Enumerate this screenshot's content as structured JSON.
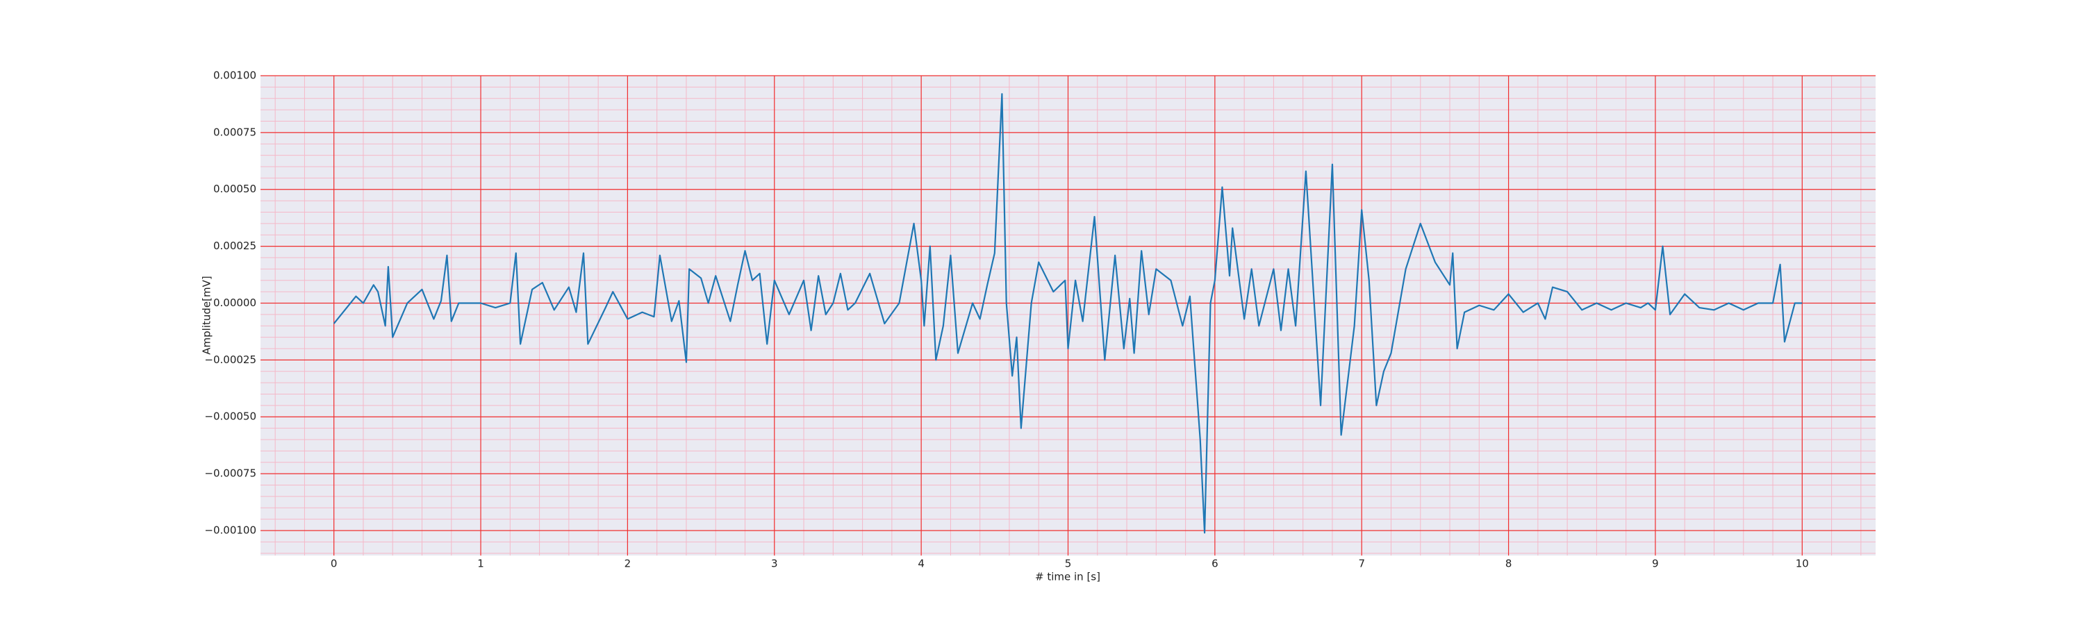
{
  "chart_data": {
    "type": "line",
    "xlabel": "# time in [s]",
    "ylabel": "Amplitude[mV]",
    "xlim": [
      -0.5,
      10.5
    ],
    "ylim": [
      -0.00111,
      0.001
    ],
    "xticks": [
      0,
      1,
      2,
      3,
      4,
      5,
      6,
      7,
      8,
      9,
      10
    ],
    "yticks": [
      {
        "value": -0.001,
        "label": "−0.00100"
      },
      {
        "value": -0.00075,
        "label": "−0.00075"
      },
      {
        "value": -0.0005,
        "label": "−0.00050"
      },
      {
        "value": -0.00025,
        "label": "−0.00025"
      },
      {
        "value": 0,
        "label": "0.00000"
      },
      {
        "value": 0.00025,
        "label": "0.00025"
      },
      {
        "value": 0.0005,
        "label": "0.00050"
      },
      {
        "value": 0.00075,
        "label": "0.00075"
      },
      {
        "value": 0.001,
        "label": "0.00100"
      }
    ],
    "grid": true,
    "grid_color": "#f03030",
    "minor_grid": {
      "x_divisions": 5,
      "y_divisions": 5,
      "color": "#f5b8c8"
    },
    "background": "#eaeaf2",
    "x": [
      0,
      0.15,
      0.2,
      0.27,
      0.3,
      0.35,
      0.37,
      0.4,
      0.5,
      0.6,
      0.68,
      0.73,
      0.77,
      0.8,
      0.85,
      1.0,
      1.1,
      1.2,
      1.24,
      1.27,
      1.35,
      1.42,
      1.5,
      1.6,
      1.65,
      1.7,
      1.73,
      1.85,
      1.9,
      2.0,
      2.1,
      2.18,
      2.22,
      2.3,
      2.35,
      2.4,
      2.42,
      2.5,
      2.55,
      2.6,
      2.7,
      2.75,
      2.8,
      2.85,
      2.9,
      2.95,
      3.0,
      3.1,
      3.2,
      3.25,
      3.3,
      3.35,
      3.4,
      3.45,
      3.5,
      3.55,
      3.65,
      3.7,
      3.75,
      3.85,
      3.95,
      4.0,
      4.02,
      4.06,
      4.1,
      4.15,
      4.2,
      4.25,
      4.35,
      4.4,
      4.45,
      4.5,
      4.55,
      4.58,
      4.62,
      4.65,
      4.68,
      4.75,
      4.8,
      4.9,
      4.98,
      5.0,
      5.05,
      5.1,
      5.18,
      5.25,
      5.32,
      5.38,
      5.42,
      5.45,
      5.5,
      5.55,
      5.6,
      5.7,
      5.78,
      5.83,
      5.9,
      5.93,
      5.97,
      6.0,
      6.05,
      6.1,
      6.12,
      6.2,
      6.25,
      6.3,
      6.4,
      6.45,
      6.5,
      6.55,
      6.62,
      6.65,
      6.72,
      6.8,
      6.86,
      6.95,
      7.0,
      7.05,
      7.1,
      7.15,
      7.2,
      7.3,
      7.4,
      7.5,
      7.6,
      7.62,
      7.65,
      7.7,
      7.8,
      7.9,
      8.0,
      8.1,
      8.2,
      8.25,
      8.3,
      8.4,
      8.5,
      8.6,
      8.7,
      8.8,
      8.9,
      8.95,
      9.0,
      9.05,
      9.1,
      9.2,
      9.3,
      9.4,
      9.5,
      9.6,
      9.7,
      9.8,
      9.85,
      9.88,
      9.95,
      10.0
    ],
    "series": [
      {
        "color": "#1f77b4",
        "values": [
          -9e-05,
          3e-05,
          0.0,
          8e-05,
          5e-05,
          -0.0001,
          0.00016,
          -0.00015,
          0.0,
          6e-05,
          -7e-05,
          1e-05,
          0.00021,
          -8e-05,
          0.0,
          0.0,
          -2e-05,
          0.0,
          0.00022,
          -0.00018,
          6e-05,
          9e-05,
          -3e-05,
          7e-05,
          -4e-05,
          0.00022,
          -0.00018,
          -2e-05,
          5e-05,
          -7e-05,
          -4e-05,
          -6e-05,
          0.00021,
          -8e-05,
          1e-05,
          -0.00026,
          0.00015,
          0.00011,
          0.0,
          0.00012,
          -8e-05,
          8e-05,
          0.00023,
          0.0001,
          0.00013,
          -0.00018,
          0.0001,
          -5e-05,
          0.0001,
          -0.00012,
          0.00012,
          -5e-05,
          0.0,
          0.00013,
          -3e-05,
          0.0,
          0.00013,
          2e-05,
          -9e-05,
          0.0,
          0.00035,
          0.0001,
          -0.0001,
          0.00025,
          -0.00025,
          -0.0001,
          0.00021,
          -0.00022,
          0.0,
          -7e-05,
          8e-05,
          0.00022,
          0.00092,
          0.0,
          -0.00032,
          -0.00015,
          -0.00055,
          0.0,
          0.00018,
          5e-05,
          0.0001,
          -0.0002,
          0.0001,
          -8e-05,
          0.00038,
          -0.00025,
          0.00021,
          -0.0002,
          2e-05,
          -0.00022,
          0.00023,
          -5e-05,
          0.00015,
          0.0001,
          -0.0001,
          3e-05,
          -0.0006,
          -0.00101,
          0.0,
          0.0001,
          0.00051,
          0.00012,
          0.00033,
          -7e-05,
          0.00015,
          -0.0001,
          0.00015,
          -0.00012,
          0.00015,
          -0.0001,
          0.00058,
          0.00027,
          -0.00045,
          0.00061,
          -0.00058,
          -0.0001,
          0.00041,
          0.0001,
          -0.00045,
          -0.0003,
          -0.00022,
          0.00015,
          0.00035,
          0.00018,
          8e-05,
          0.00022,
          -0.0002,
          -4e-05,
          -1e-05,
          -3e-05,
          4e-05,
          -4e-05,
          0.0,
          -7e-05,
          7e-05,
          5e-05,
          -3e-05,
          0.0,
          -3e-05,
          0.0,
          -2e-05,
          0.0,
          -3e-05,
          0.00025,
          -5e-05,
          4e-05,
          -2e-05,
          -3e-05,
          0.0,
          -3e-05,
          0.0,
          0.0,
          0.00017,
          -0.00017,
          0.0,
          0.0
        ]
      }
    ]
  }
}
